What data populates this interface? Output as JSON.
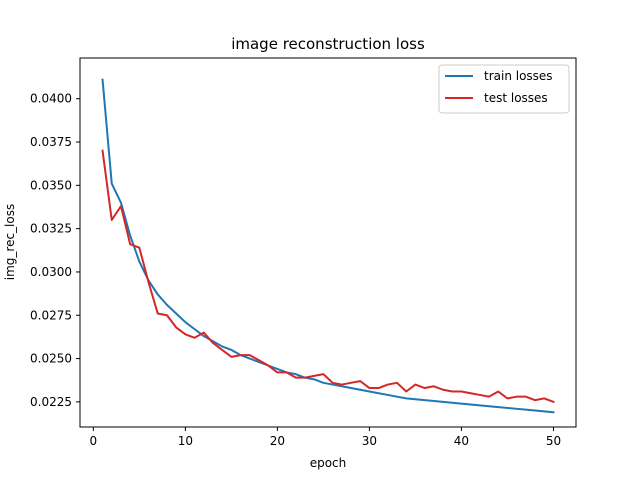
{
  "chart_data": {
    "type": "line",
    "title": "image reconstruction loss",
    "xlabel": "epoch",
    "ylabel": "img_rec_loss",
    "xlim": [
      -1.45,
      52.45
    ],
    "ylim": [
      0.02105,
      0.04235
    ],
    "xticks": [
      0,
      10,
      20,
      30,
      40,
      50
    ],
    "xtick_labels": [
      "0",
      "10",
      "20",
      "30",
      "40",
      "50"
    ],
    "yticks": [
      0.0225,
      0.025,
      0.0275,
      0.03,
      0.0325,
      0.035,
      0.0375,
      0.04
    ],
    "ytick_labels": [
      "0.0225",
      "0.0250",
      "0.0275",
      "0.0300",
      "0.0325",
      "0.0350",
      "0.0375",
      "0.0400"
    ],
    "grid": false,
    "legend_position": "top-right",
    "x": [
      1,
      2,
      3,
      4,
      5,
      6,
      7,
      8,
      9,
      10,
      11,
      12,
      13,
      14,
      15,
      16,
      17,
      18,
      19,
      20,
      21,
      22,
      23,
      24,
      25,
      26,
      27,
      28,
      29,
      30,
      31,
      32,
      33,
      34,
      35,
      36,
      37,
      38,
      39,
      40,
      41,
      42,
      43,
      44,
      45,
      46,
      47,
      48,
      49,
      50
    ],
    "series": [
      {
        "name": "train losses",
        "color": "#1f77b4",
        "values": [
          0.0411,
          0.0351,
          0.034,
          0.0321,
          0.0306,
          0.0295,
          0.0287,
          0.0281,
          0.0276,
          0.0271,
          0.0267,
          0.0263,
          0.026,
          0.0257,
          0.0255,
          0.0252,
          0.025,
          0.0248,
          0.0246,
          0.0244,
          0.0242,
          0.0241,
          0.0239,
          0.0238,
          0.0236,
          0.0235,
          0.0234,
          0.0233,
          0.0232,
          0.0231,
          0.023,
          0.0229,
          0.0228,
          0.0227,
          0.02265,
          0.0226,
          0.02255,
          0.0225,
          0.02245,
          0.0224,
          0.02235,
          0.0223,
          0.02225,
          0.0222,
          0.02215,
          0.0221,
          0.02205,
          0.022,
          0.02195,
          0.0219
        ]
      },
      {
        "name": "test losses",
        "color": "#d62728",
        "values": [
          0.037,
          0.033,
          0.0338,
          0.0316,
          0.0314,
          0.0294,
          0.0276,
          0.0275,
          0.0268,
          0.0264,
          0.0262,
          0.0265,
          0.0259,
          0.0255,
          0.0251,
          0.0252,
          0.0252,
          0.0249,
          0.0246,
          0.0242,
          0.0242,
          0.0239,
          0.0239,
          0.024,
          0.0241,
          0.0236,
          0.0235,
          0.0236,
          0.0237,
          0.0233,
          0.0233,
          0.0235,
          0.0236,
          0.0231,
          0.0235,
          0.0233,
          0.0234,
          0.0232,
          0.0231,
          0.0231,
          0.023,
          0.0229,
          0.0228,
          0.0231,
          0.0227,
          0.0228,
          0.0228,
          0.0226,
          0.0227,
          0.0225
        ]
      }
    ]
  }
}
